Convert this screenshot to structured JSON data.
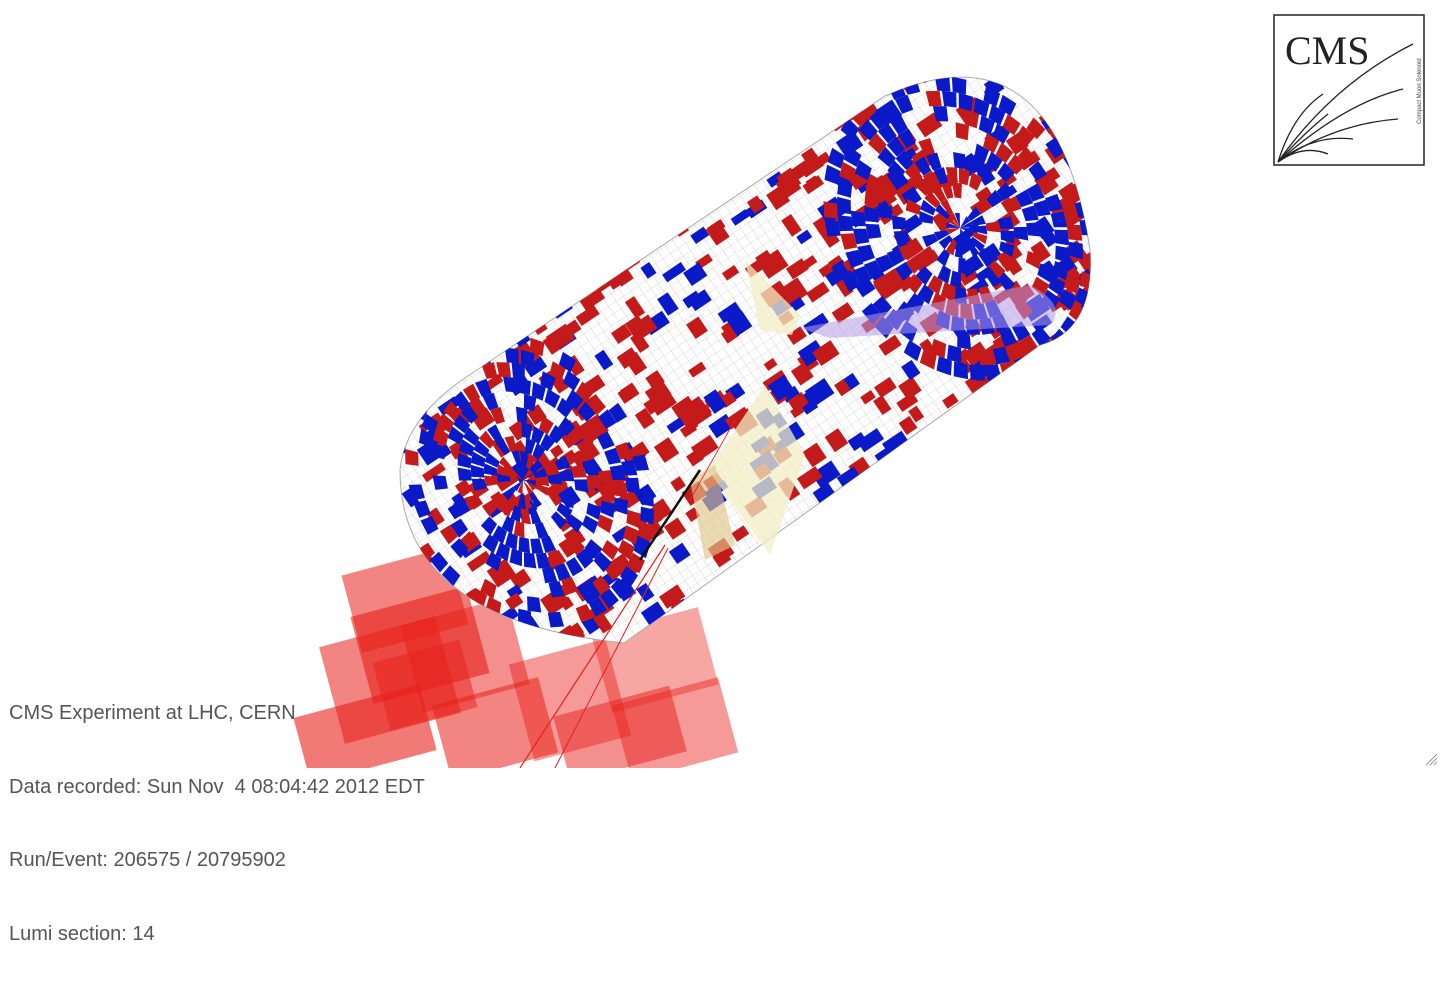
{
  "event_info": {
    "experiment": "CMS Experiment at LHC, CERN",
    "recorded": "Data recorded: Sun Nov  4 08:04:42 2012 EDT",
    "run_event": "Run/Event: 206575 / 20795902",
    "lumi": "Lumi section: 14"
  },
  "logo": {
    "text": "CMS",
    "subtitle": "Compact Muon Solenoid"
  },
  "colors": {
    "hcal_red": "#c41a1a",
    "ecal_blue": "#0a1ac8",
    "energy_tower": "#e8201a",
    "jet_cone": "#f2efc4",
    "met_purple": "#b49be6",
    "mesh": "#bbbbbb",
    "text": "#555555"
  }
}
